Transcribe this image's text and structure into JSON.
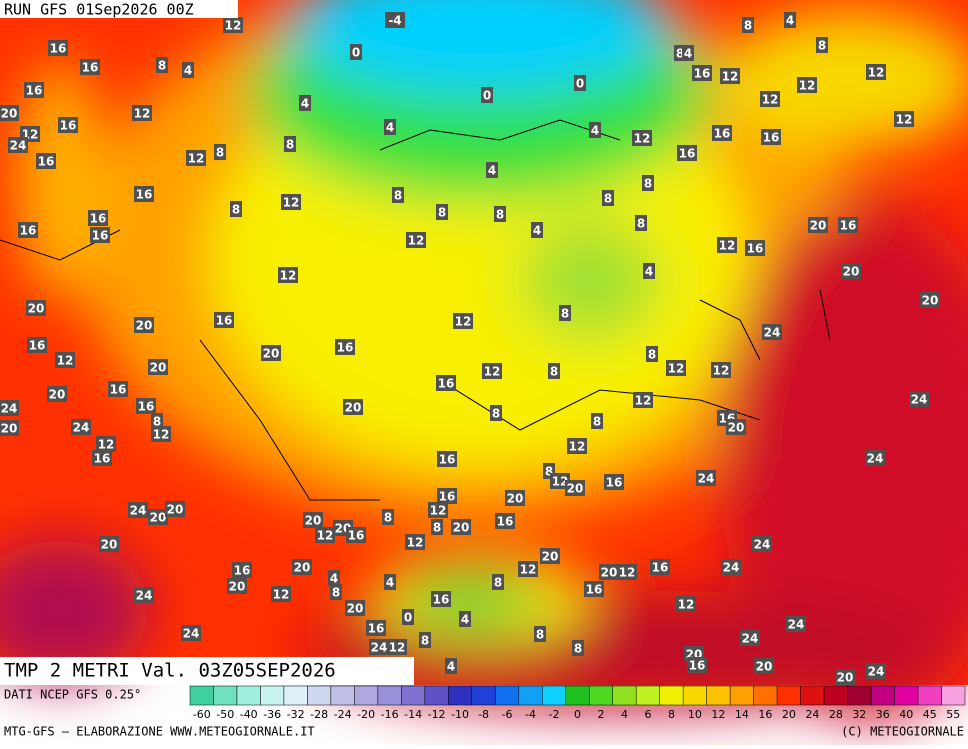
{
  "header": {
    "title": "RUN GFS 01Sep2026 00Z"
  },
  "map": {
    "variable": "TMP 2 METRI Val. 03Z05SEP2026",
    "labels": [
      12,
      -4,
      4,
      8,
      8,
      16,
      0,
      8,
      4,
      16,
      8,
      4,
      16,
      12,
      12,
      0,
      12,
      16,
      0,
      4,
      12,
      12,
      20,
      12,
      16,
      4,
      4,
      12,
      12,
      16,
      16,
      24,
      8,
      16,
      12,
      8,
      16,
      4,
      8,
      16,
      8,
      12,
      8,
      8,
      8,
      8,
      16,
      16,
      16,
      4,
      8,
      12,
      12,
      16,
      20,
      16,
      4,
      12,
      20,
      20,
      16,
      12,
      8,
      20,
      24,
      20,
      16,
      20,
      16,
      8,
      12,
      20,
      12,
      8,
      12,
      12,
      16,
      16,
      20,
      12,
      24,
      24,
      16,
      20,
      8,
      8,
      8,
      16,
      12,
      24,
      20,
      20,
      12,
      12,
      16,
      16,
      24,
      8,
      12,
      20,
      16,
      24,
      16,
      20,
      12,
      24,
      20,
      20,
      8,
      16,
      20,
      20,
      12,
      16,
      8,
      20,
      12,
      20,
      24,
      20,
      12,
      20,
      12,
      16,
      24,
      16,
      20,
      4,
      4,
      8,
      20,
      12,
      8,
      16,
      24,
      16,
      12,
      20,
      0,
      4,
      16,
      24,
      24,
      8,
      8,
      24,
      24,
      12,
      8,
      20,
      16,
      20,
      4,
      20,
      24
    ]
  },
  "footer": {
    "source": "DATI NCEP GFS 0.25°",
    "credit": "MTG-GFS — ELABORAZIONE WWW.METEOGIORNALE.IT",
    "copyright": "(C) METEOGIORNALE",
    "legend": {
      "labels": [
        -60,
        -50,
        -40,
        -36,
        -32,
        -28,
        -24,
        -20,
        -16,
        -14,
        -12,
        -10,
        -8,
        -6,
        -4,
        -2,
        0,
        2,
        4,
        6,
        8,
        10,
        12,
        14,
        16,
        20,
        24,
        28,
        32,
        36,
        40,
        45,
        55
      ],
      "colors": [
        "#40d0a0",
        "#70e0c0",
        "#a0f0e0",
        "#c8f4f0",
        "#e0f0f8",
        "#d0d8f0",
        "#c0c0e8",
        "#b0a8e0",
        "#9890d8",
        "#8070d0",
        "#6050c8",
        "#3030c0",
        "#2040d8",
        "#1070f0",
        "#10a0f8",
        "#10d0ff",
        "#20c020",
        "#50d820",
        "#90e020",
        "#c0f020",
        "#f0f000",
        "#f8d800",
        "#ffc000",
        "#ffa000",
        "#ff7000",
        "#ff3000",
        "#e01010",
        "#c00020",
        "#a00030",
        "#c00080",
        "#e000a0",
        "#f040c0",
        "#f8a0e0"
      ]
    }
  }
}
